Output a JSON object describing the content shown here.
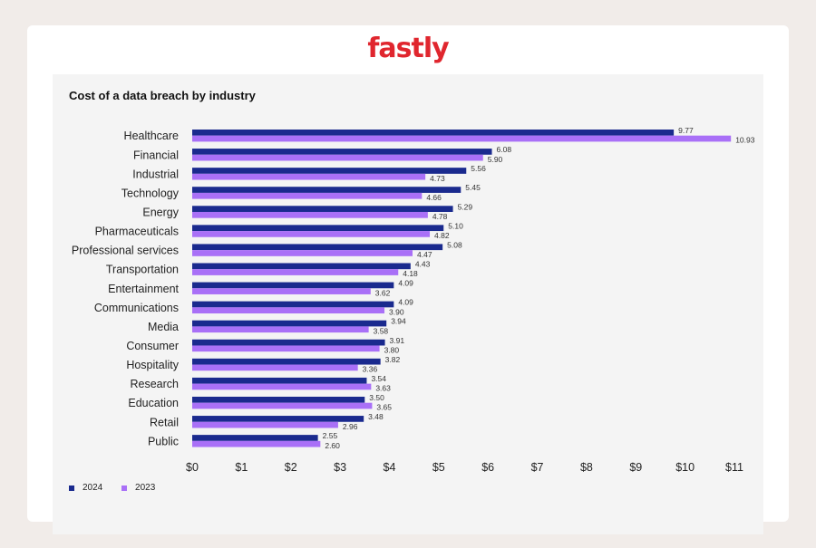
{
  "brand": {
    "name": "fastly",
    "color": "#e0262e"
  },
  "colors": {
    "series_2024": "#1a2a8e",
    "series_2023": "#a970f7",
    "panel": "#f4f4f4"
  },
  "chart_data": {
    "type": "bar",
    "orientation": "horizontal",
    "title": "Cost of a data breach by industry",
    "categories": [
      "Healthcare",
      "Financial",
      "Industrial",
      "Technology",
      "Energy",
      "Pharmaceuticals",
      "Professional services",
      "Transportation",
      "Entertainment",
      "Communications",
      "Media",
      "Consumer",
      "Hospitality",
      "Research",
      "Education",
      "Retail",
      "Public"
    ],
    "series": [
      {
        "name": "2024",
        "values": [
          9.77,
          6.08,
          5.56,
          5.45,
          5.29,
          5.1,
          5.08,
          4.43,
          4.09,
          4.09,
          3.94,
          3.91,
          3.82,
          3.54,
          3.5,
          3.48,
          2.55
        ]
      },
      {
        "name": "2023",
        "values": [
          10.93,
          5.9,
          4.73,
          4.66,
          4.78,
          4.82,
          4.47,
          4.18,
          3.62,
          3.9,
          3.58,
          3.8,
          3.36,
          3.63,
          3.65,
          2.96,
          2.6
        ]
      }
    ],
    "value_labels": [
      [
        "9.77",
        "6.08",
        "5.56",
        "5.45",
        "5.29",
        "5.10",
        "5.08",
        "4.43",
        "4.09",
        "4.09",
        "3.94",
        "3.91",
        "3.82",
        "3.54",
        "3.50",
        "3.48",
        "2.55"
      ],
      [
        "10.93",
        "5.90",
        "4.73",
        "4.66",
        "4.78",
        "4.82",
        "4.47",
        "4.18",
        "3.62",
        "3.90",
        "3.58",
        "3.80",
        "3.36",
        "3.63",
        "3.65",
        "2.96",
        "2.60"
      ]
    ],
    "xlim": [
      0,
      11
    ],
    "xticks": [
      0,
      1,
      2,
      3,
      4,
      5,
      6,
      7,
      8,
      9,
      10,
      11
    ],
    "xtick_labels": [
      "$0",
      "$1",
      "$2",
      "$3",
      "$4",
      "$5",
      "$6",
      "$7",
      "$8",
      "$9",
      "$10",
      "$11"
    ],
    "xlabel": "",
    "ylabel": "",
    "grid": false,
    "legend_position": "bottom-left"
  }
}
